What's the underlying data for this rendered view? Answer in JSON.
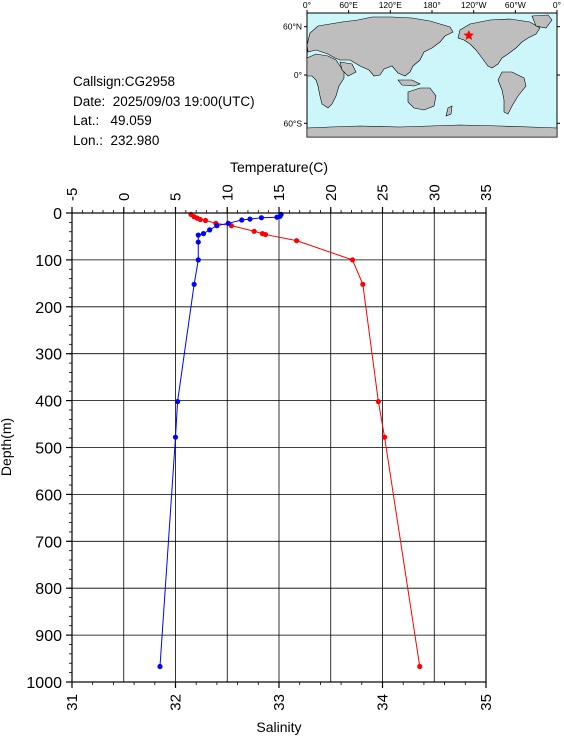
{
  "station": {
    "callsign_line": "Callsign:CG2958",
    "date_line": "Date:  2025/09/03 19:00(UTC)",
    "lat_line": "Lat.:   49.059",
    "lon_line": "Lon.:  232.980"
  },
  "map": {
    "lon_tick_labels": [
      "0°",
      "60°E",
      "120°E",
      "180°",
      "120°W",
      "60°W",
      "0°"
    ],
    "lat_tick_labels": [
      "60°N",
      "0°",
      "60°S"
    ],
    "ocean_color": "#cdf6fb",
    "land_color": "#bebebe",
    "marker_color": "#ff0000",
    "marker_icon": "star-icon",
    "marker_lon": 232.98,
    "marker_lat": 49.059
  },
  "chart_data": {
    "type": "line",
    "ylabel": "Depth(m)",
    "ylim": [
      0,
      1000
    ],
    "y_ticks": [
      "0",
      "100",
      "200",
      "300",
      "400",
      "500",
      "600",
      "700",
      "800",
      "900",
      "1000"
    ],
    "y_inverted": true,
    "grid": true,
    "top_axis": {
      "label": "Temperature(C)",
      "xlim": [
        -5,
        35
      ],
      "ticks": [
        "-5",
        "0",
        "5",
        "10",
        "15",
        "20",
        "25",
        "30",
        "35"
      ]
    },
    "bottom_axis": {
      "label": "Salinity",
      "xlim": [
        31,
        35
      ],
      "ticks": [
        "31",
        "32",
        "33",
        "34",
        "35"
      ]
    },
    "series": [
      {
        "color": "#ff0000",
        "axis": "top",
        "points": [
          [
            6.5,
            3
          ],
          [
            6.8,
            8
          ],
          [
            7.1,
            11
          ],
          [
            7.4,
            14
          ],
          [
            7.9,
            16
          ],
          [
            8.9,
            22
          ],
          [
            10.4,
            27
          ],
          [
            12.6,
            39
          ],
          [
            13.4,
            44
          ],
          [
            13.7,
            46
          ],
          [
            16.7,
            59
          ],
          [
            22.1,
            100
          ],
          [
            23.1,
            152
          ],
          [
            24.6,
            402
          ],
          [
            25.2,
            478
          ],
          [
            28.6,
            967
          ]
        ]
      },
      {
        "color": "#0000ff",
        "axis": "bottom",
        "points": [
          [
            33.02,
            3
          ],
          [
            33.01,
            7
          ],
          [
            32.98,
            9
          ],
          [
            32.83,
            10
          ],
          [
            32.72,
            13
          ],
          [
            32.64,
            15
          ],
          [
            32.51,
            22
          ],
          [
            32.4,
            27
          ],
          [
            32.33,
            36
          ],
          [
            32.27,
            44
          ],
          [
            32.22,
            47
          ],
          [
            32.22,
            62
          ],
          [
            32.22,
            100
          ],
          [
            32.18,
            152
          ],
          [
            32.02,
            402
          ],
          [
            32.0,
            478
          ],
          [
            31.85,
            967
          ]
        ]
      }
    ]
  }
}
